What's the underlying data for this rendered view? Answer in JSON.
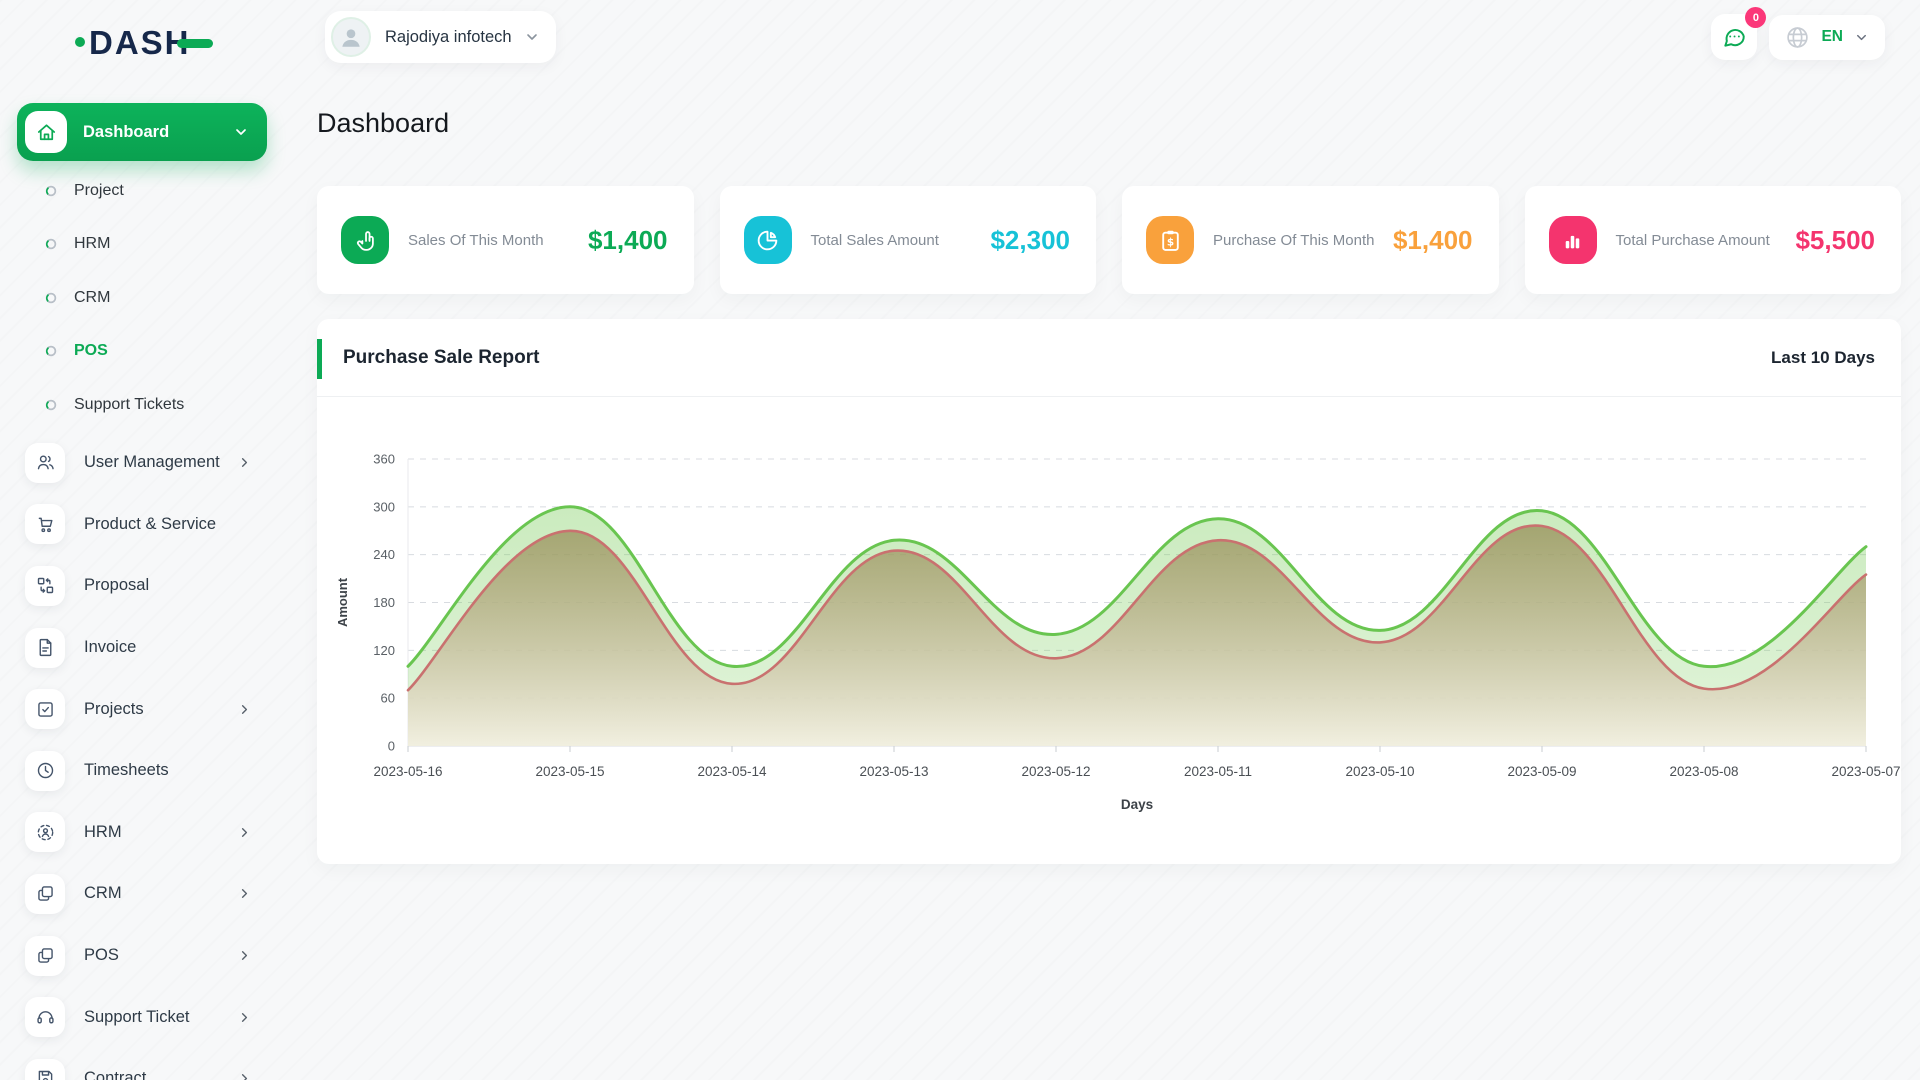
{
  "brand": {
    "name": "DASH",
    "accent": "#0caa55"
  },
  "topbar": {
    "company": {
      "label": "Rajodiya infotech"
    },
    "messages": {
      "badge": "0"
    },
    "language": {
      "code": "EN"
    }
  },
  "sidebar": {
    "active": {
      "label": "Dashboard"
    },
    "sub_items": [
      {
        "label": "Project",
        "active": false
      },
      {
        "label": "HRM",
        "active": false
      },
      {
        "label": "CRM",
        "active": false
      },
      {
        "label": "POS",
        "active": true
      },
      {
        "label": "Support Tickets",
        "active": false
      }
    ],
    "items": [
      {
        "label": "User Management",
        "icon": "users-icon",
        "chevron": true
      },
      {
        "label": "Product & Service",
        "icon": "cart-icon",
        "chevron": false
      },
      {
        "label": "Proposal",
        "icon": "swap-icon",
        "chevron": false
      },
      {
        "label": "Invoice",
        "icon": "file-icon",
        "chevron": false
      },
      {
        "label": "Projects",
        "icon": "check-square-icon",
        "chevron": true
      },
      {
        "label": "Timesheets",
        "icon": "clock-icon",
        "chevron": false
      },
      {
        "label": "HRM",
        "icon": "person-target-icon",
        "chevron": true
      },
      {
        "label": "CRM",
        "icon": "squares-icon",
        "chevron": true
      },
      {
        "label": "POS",
        "icon": "squares-icon",
        "chevron": true
      },
      {
        "label": "Support Ticket",
        "icon": "headset-icon",
        "chevron": true
      },
      {
        "label": "Contract",
        "icon": "save-icon",
        "chevron": true
      }
    ]
  },
  "page": {
    "title": "Dashboard"
  },
  "stat_cards": [
    {
      "label": "Sales Of This Month",
      "value": "$1,400",
      "color": "#0caa55",
      "icon": "tap-icon"
    },
    {
      "label": "Total Sales Amount",
      "value": "$2,300",
      "color": "#17c2d7",
      "icon": "pie-icon"
    },
    {
      "label": "Purchase Of This Month",
      "value": "$1,400",
      "color": "#f9a13c",
      "icon": "clipboard-dollar-icon"
    },
    {
      "label": "Total Purchase Amount",
      "value": "$5,500",
      "color": "#f4346e",
      "icon": "bar-chart-icon"
    }
  ],
  "report": {
    "title": "Purchase Sale Report",
    "range": "Last 10 Days"
  },
  "chart_data": {
    "type": "area",
    "title": "Purchase Sale Report",
    "xlabel": "Days",
    "ylabel": "Amount",
    "x": [
      "2023-05-16",
      "2023-05-15",
      "2023-05-14",
      "2023-05-13",
      "2023-05-12",
      "2023-05-11",
      "2023-05-10",
      "2023-05-09",
      "2023-05-08",
      "2023-05-07"
    ],
    "series": [
      {
        "name": "green-series",
        "color": "#69c550",
        "values": [
          100,
          300,
          100,
          258,
          140,
          285,
          145,
          295,
          100,
          250
        ]
      },
      {
        "name": "red-series",
        "color": "#c9716f",
        "values": [
          70,
          270,
          78,
          245,
          110,
          258,
          130,
          276,
          72,
          215
        ]
      }
    ],
    "ylim": [
      0,
      360
    ],
    "ytick_step": 60,
    "grid": true,
    "legend": false
  }
}
